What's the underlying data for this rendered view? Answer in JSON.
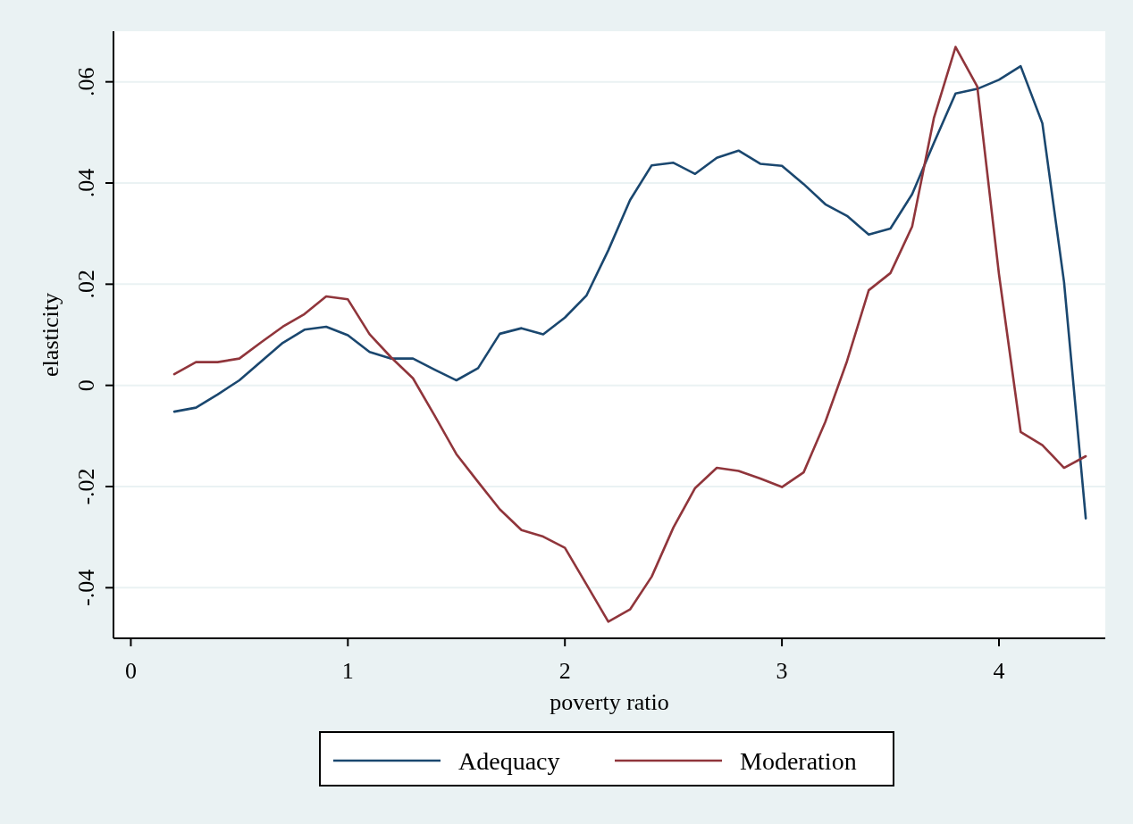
{
  "chart_data": {
    "type": "line",
    "xlabel": "poverty ratio",
    "ylabel": "elasticity",
    "x": [
      0.2,
      0.3,
      0.4,
      0.5,
      0.6,
      0.7,
      0.8,
      0.9,
      1.0,
      1.1,
      1.2,
      1.3,
      1.4,
      1.5,
      1.6,
      1.7,
      1.8,
      1.9,
      2.0,
      2.1,
      2.2,
      2.3,
      2.4,
      2.5,
      2.6,
      2.7,
      2.8,
      2.9,
      3.0,
      3.1,
      3.2,
      3.3,
      3.4,
      3.5,
      3.6,
      3.7,
      3.8,
      3.9,
      4.0,
      4.1,
      4.2,
      4.3,
      4.4
    ],
    "xlim": [
      -0.08,
      4.49
    ],
    "xticks": [
      0,
      1,
      2,
      3,
      4
    ],
    "ylim": [
      -0.05,
      0.07
    ],
    "yticks": [
      {
        "value": -0.04,
        "label": "-.04"
      },
      {
        "value": -0.02,
        "label": "-.02"
      },
      0,
      {
        "value": 0.02,
        "label": ".02"
      },
      {
        "value": 0.04,
        "label": ".04"
      },
      {
        "value": 0.06,
        "label": ".06"
      }
    ],
    "grid": "y",
    "legend": "bottom",
    "series": [
      {
        "name": "Adequacy",
        "color": "#1a476f",
        "values": [
          -0.0052,
          -0.0044,
          -0.0018,
          0.001,
          0.0047,
          0.0084,
          0.011,
          0.0116,
          0.0099,
          0.0066,
          0.0053,
          0.0053,
          0.0031,
          0.001,
          0.0034,
          0.0102,
          0.0113,
          0.0101,
          0.0134,
          0.0178,
          0.0267,
          0.0366,
          0.0435,
          0.044,
          0.0418,
          0.045,
          0.0464,
          0.0438,
          0.0434,
          0.0398,
          0.0358,
          0.0335,
          0.0298,
          0.031,
          0.0378,
          0.0479,
          0.0577,
          0.0586,
          0.0604,
          0.0631,
          0.0518,
          0.0204,
          -0.0263
        ]
      },
      {
        "name": "Moderation",
        "color": "#90353b",
        "values": [
          0.0022,
          0.0046,
          0.0046,
          0.0053,
          0.0085,
          0.0116,
          0.0141,
          0.0176,
          0.017,
          0.0101,
          0.0055,
          0.0014,
          -0.006,
          -0.0136,
          -0.0191,
          -0.0245,
          -0.0286,
          -0.0299,
          -0.0321,
          -0.0394,
          -0.0467,
          -0.0443,
          -0.0378,
          -0.0281,
          -0.0203,
          -0.0163,
          -0.0169,
          -0.0184,
          -0.0201,
          -0.0172,
          -0.0072,
          0.0048,
          0.0188,
          0.0222,
          0.0314,
          0.0528,
          0.0669,
          0.0591,
          0.022,
          -0.0092,
          -0.0118,
          -0.0163,
          -0.014
        ]
      }
    ]
  }
}
